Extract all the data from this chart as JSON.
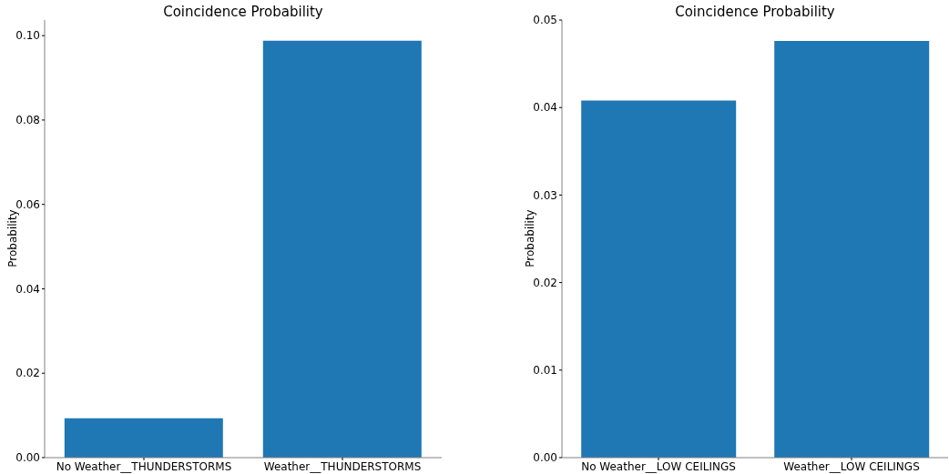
{
  "chart_data": [
    {
      "type": "bar",
      "title": "Coincidence Probability",
      "ylabel": "Probability",
      "categories": [
        "No Weather__THUNDERSTORMS",
        "Weather__THUNDERSTORMS"
      ],
      "values": [
        0.0093,
        0.0988
      ],
      "color": "#1f77b4",
      "ylim": [
        0,
        0.1037
      ],
      "yticks": [
        {
          "value": 0,
          "label": "0.00"
        },
        {
          "value": 0.02,
          "label": "0.02"
        },
        {
          "value": 0.04,
          "label": "0.04"
        },
        {
          "value": 0.06,
          "label": "0.06"
        },
        {
          "value": 0.08,
          "label": "0.08"
        },
        {
          "value": 0.1,
          "label": "0.10"
        }
      ]
    },
    {
      "type": "bar",
      "title": "Coincidence Probability",
      "ylabel": "Probability",
      "categories": [
        "No Weather__LOW CEILINGS",
        "Weather__LOW CEILINGS"
      ],
      "values": [
        0.0408,
        0.0476
      ],
      "color": "#1f77b4",
      "ylim": [
        0,
        0.05
      ],
      "yticks": [
        {
          "value": 0,
          "label": "0.00"
        },
        {
          "value": 0.01,
          "label": "0.01"
        },
        {
          "value": 0.02,
          "label": "0.02"
        },
        {
          "value": 0.03,
          "label": "0.03"
        },
        {
          "value": 0.04,
          "label": "0.04"
        },
        {
          "value": 0.05,
          "label": "0.05"
        }
      ]
    }
  ]
}
